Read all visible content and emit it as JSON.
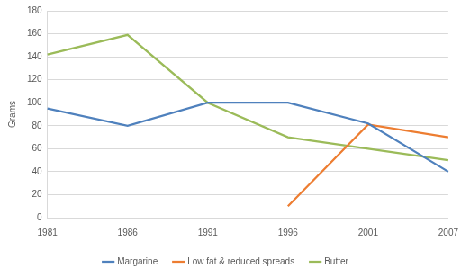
{
  "chart_data": {
    "type": "line",
    "y_label": "Grams",
    "categories": [
      "1981",
      "1986",
      "1991",
      "1996",
      "2001",
      "2007"
    ],
    "series": [
      {
        "name": "Margarine",
        "color": "#4f81bd",
        "values": [
          95,
          80,
          100,
          100,
          82,
          40
        ]
      },
      {
        "name": "Low fat & reduced spreads",
        "color": "#ed7d31",
        "values": [
          null,
          null,
          null,
          10,
          81,
          70
        ]
      },
      {
        "name": "Butter",
        "color": "#9bbb59",
        "values": [
          142,
          159,
          100,
          70,
          60,
          50
        ]
      }
    ],
    "ylim": [
      0,
      180
    ],
    "yticks": [
      0,
      20,
      40,
      60,
      80,
      100,
      120,
      140,
      160,
      180
    ],
    "grid": true,
    "legend": "bottom"
  }
}
